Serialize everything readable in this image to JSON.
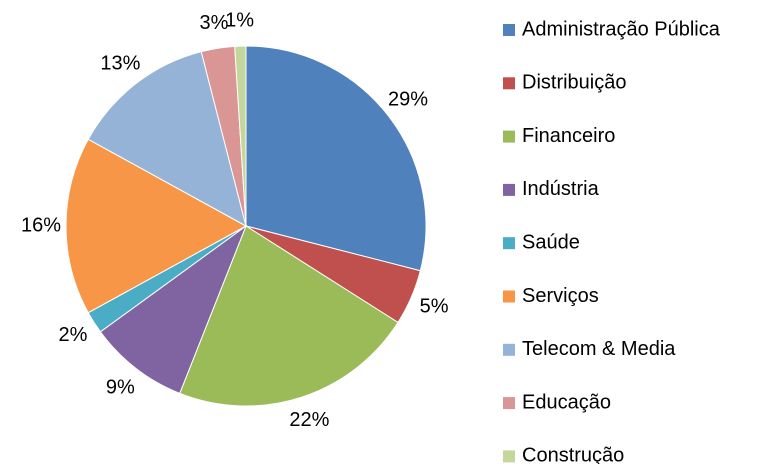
{
  "chart_data": {
    "type": "pie",
    "categories": [
      "Administração Pública",
      "Distribuição",
      "Financeiro",
      "Indústria",
      "Saúde",
      "Serviços",
      "Telecom & Media",
      "Educação",
      "Construção"
    ],
    "values": [
      29,
      5,
      22,
      9,
      2,
      16,
      13,
      3,
      1
    ],
    "value_labels": [
      "29%",
      "5%",
      "22%",
      "9%",
      "2%",
      "16%",
      "13%",
      "3%",
      "1%"
    ],
    "colors": [
      "#4f81bd",
      "#c0504d",
      "#9bbb59",
      "#8064a2",
      "#4bacc6",
      "#f79646",
      "#95b3d7",
      "#d99694",
      "#c3d69b"
    ],
    "legend": "right"
  }
}
